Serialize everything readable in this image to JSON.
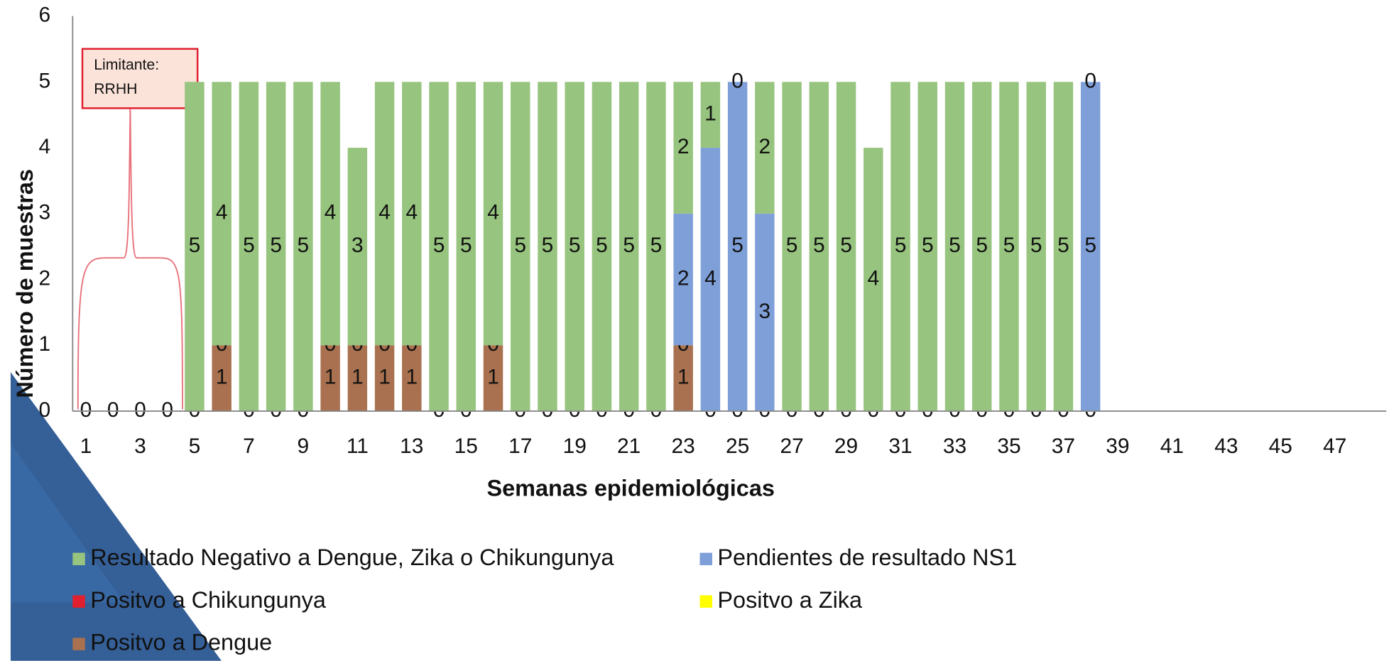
{
  "chart_data": {
    "type": "stacked_bar",
    "y_label": "Número de muestras",
    "x_label": "Semanas epidemiológicas",
    "annotation": [
      "Limitante:",
      "RRHH"
    ],
    "categories": [
      1,
      null,
      3,
      null,
      5,
      null,
      7,
      null,
      9,
      null,
      11,
      null,
      13,
      null,
      15,
      null,
      17,
      null,
      19,
      null,
      21,
      null,
      23,
      null,
      25,
      null,
      27,
      null,
      29,
      null,
      31,
      null,
      33,
      null,
      35,
      null,
      37,
      null,
      39,
      null,
      41,
      null,
      43,
      null,
      45,
      null,
      47,
      null
    ],
    "ylim": [
      0,
      6
    ],
    "yticks": [
      0,
      1,
      2,
      3,
      4,
      5,
      6
    ],
    "series": [
      {
        "name": "Positvo a Dengue",
        "color": "#a9714f",
        "values": [
          0,
          0,
          0,
          0,
          0,
          1,
          0,
          0,
          0,
          1,
          1,
          1,
          1,
          0,
          0,
          1,
          0,
          0,
          0,
          0,
          0,
          0,
          1,
          0,
          0,
          0,
          0,
          0,
          0,
          0,
          0,
          0,
          0,
          0,
          0,
          0,
          0,
          0,
          null,
          null,
          null,
          null,
          null,
          null,
          null,
          null,
          null,
          null
        ]
      },
      {
        "name": "Positvo a Chikungunya",
        "color": "#e0202e",
        "values": [
          null,
          null,
          null,
          null,
          null,
          0,
          null,
          null,
          null,
          0,
          0,
          0,
          0,
          null,
          null,
          0,
          null,
          null,
          null,
          null,
          null,
          null,
          0,
          null,
          null,
          null,
          null,
          null,
          null,
          null,
          null,
          null,
          null,
          null,
          null,
          null,
          null,
          null,
          null,
          null,
          null,
          null,
          null,
          null,
          null,
          null,
          null,
          null
        ]
      },
      {
        "name": "Positvo a  Zika",
        "color": "#ffff00",
        "values": [
          null,
          null,
          null,
          null,
          null,
          null,
          null,
          null,
          null,
          null,
          null,
          null,
          null,
          null,
          null,
          null,
          null,
          null,
          null,
          null,
          null,
          null,
          null,
          null,
          null,
          null,
          null,
          null,
          null,
          null,
          null,
          null,
          null,
          null,
          null,
          null,
          null,
          null,
          null,
          null,
          null,
          null,
          null,
          null,
          null,
          null,
          null,
          null
        ]
      },
      {
        "name": "Pendientes de resultado NS1",
        "color": "#7f9fd8",
        "values": [
          null,
          null,
          null,
          null,
          null,
          null,
          null,
          null,
          null,
          null,
          null,
          null,
          null,
          null,
          null,
          null,
          null,
          null,
          null,
          null,
          null,
          null,
          2,
          4,
          5,
          3,
          null,
          null,
          null,
          null,
          null,
          null,
          null,
          null,
          null,
          null,
          null,
          5,
          null,
          null,
          null,
          null,
          null,
          null,
          null,
          null,
          null,
          null
        ]
      },
      {
        "name": "Resultado Negativo a Dengue, Zika o Chikungunya",
        "color": "#97c47e",
        "values": [
          null,
          null,
          null,
          null,
          5,
          4,
          5,
          5,
          5,
          4,
          3,
          4,
          4,
          5,
          5,
          4,
          5,
          5,
          5,
          5,
          5,
          5,
          2,
          1,
          0,
          2,
          5,
          5,
          5,
          4,
          5,
          5,
          5,
          5,
          5,
          5,
          5,
          0,
          null,
          null,
          null,
          null,
          null,
          null,
          null,
          null,
          null,
          null
        ]
      }
    ]
  }
}
